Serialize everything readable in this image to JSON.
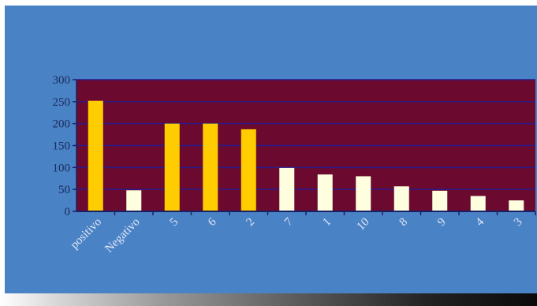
{
  "chart_data": {
    "type": "bar",
    "categories": [
      "positivo",
      "Negativo",
      "5",
      "6",
      "2",
      "7",
      "1",
      "10",
      "8",
      "9",
      "4",
      "3"
    ],
    "values": [
      252,
      48,
      200,
      200,
      187,
      99,
      84,
      80,
      57,
      47,
      35,
      25
    ],
    "bar_colors": [
      "#ffcc00",
      "#ffffe0",
      "#ffcc00",
      "#ffcc00",
      "#ffcc00",
      "#ffffe0",
      "#ffffe0",
      "#ffffe0",
      "#ffffe0",
      "#ffffe0",
      "#ffffe0",
      "#ffffe0"
    ],
    "y_ticks": [
      0,
      50,
      100,
      150,
      200,
      250,
      300
    ],
    "ylim": [
      0,
      300
    ],
    "grid": true,
    "legend": "none",
    "colors": {
      "plot_background": "#6b0a2e",
      "slide_background": "#4a82c6",
      "gridline": "#2a1a8a",
      "axis": "#1a2060"
    }
  }
}
